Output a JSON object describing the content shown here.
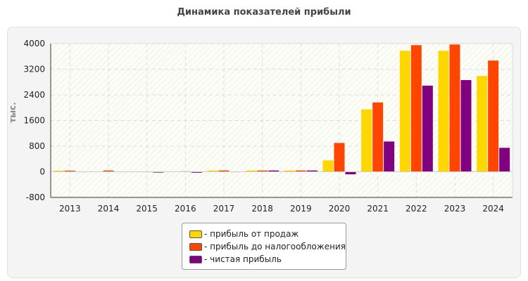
{
  "chart_data": {
    "type": "bar",
    "title": "Динамика показателей прибыли",
    "ylabel": "тыс.",
    "xlabel": "",
    "ylim": [
      -800,
      4000
    ],
    "yticks": [
      -800,
      0,
      800,
      1600,
      2400,
      3200,
      4000
    ],
    "grid": true,
    "legend_position": "bottom",
    "categories": [
      "2013",
      "2014",
      "2015",
      "2016",
      "2017",
      "2018",
      "2019",
      "2020",
      "2021",
      "2022",
      "2023",
      "2024"
    ],
    "series": [
      {
        "name": "- прибыль от продаж",
        "color": "#FFD700",
        "values": [
          35,
          10,
          10,
          10,
          40,
          40,
          40,
          356,
          1946,
          3775,
          3775,
          2991
        ]
      },
      {
        "name": "- прибыль до налогообложения",
        "color": "#FF4500",
        "values": [
          35,
          40,
          10,
          15,
          40,
          40,
          40,
          900,
          2163,
          3950,
          3971,
          3470
        ]
      },
      {
        "name": "- чистая прибыль",
        "color": "#800080",
        "values": [
          10,
          10,
          -25,
          -30,
          10,
          40,
          40,
          -80,
          944,
          2686,
          2860,
          748
        ]
      }
    ]
  }
}
